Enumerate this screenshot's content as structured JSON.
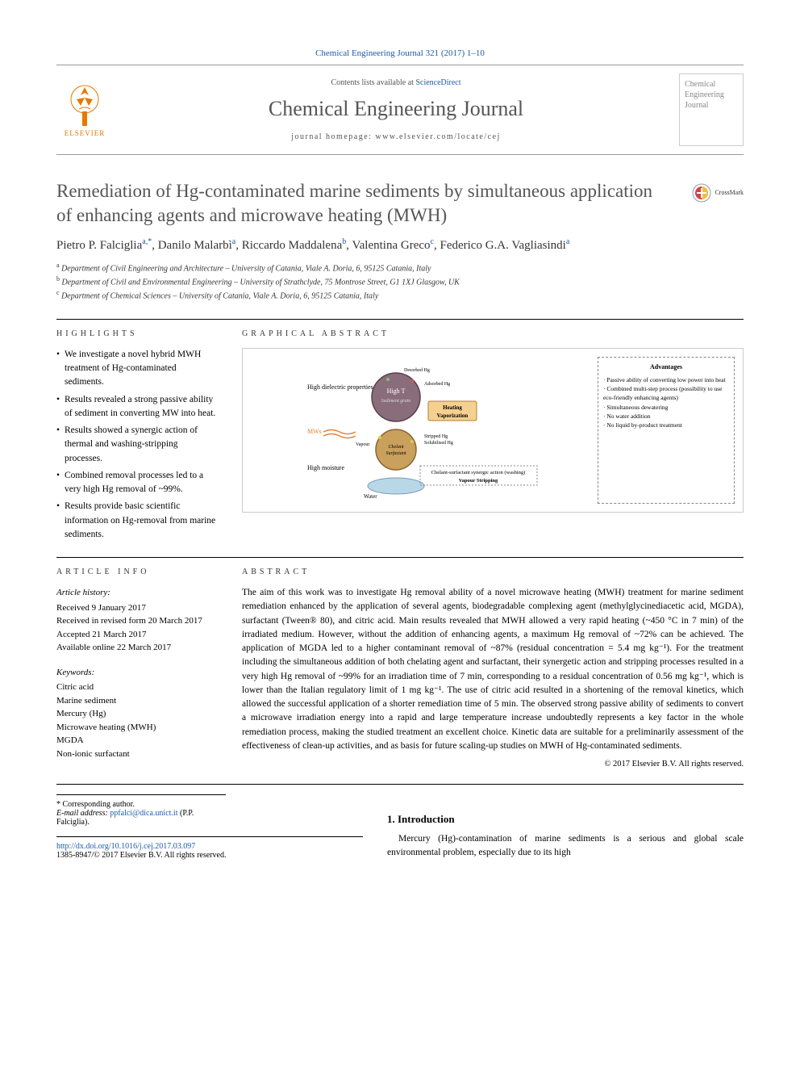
{
  "citation": "Chemical Engineering Journal 321 (2017) 1–10",
  "header": {
    "contents_prefix": "Contents lists available at ",
    "contents_link": "ScienceDirect",
    "journal_name": "Chemical Engineering Journal",
    "homepage_prefix": "journal homepage: ",
    "homepage_url": "www.elsevier.com/locate/cej",
    "publisher": "ELSEVIER",
    "cover_text": "Chemical Engineering Journal"
  },
  "crossmark": "CrossMark",
  "title": "Remediation of Hg-contaminated marine sediments by simultaneous application of enhancing agents and microwave heating (MWH)",
  "authors_html": "Pietro P. Falciglia<sup>a,*</sup>, Danilo Malarbì<sup>a</sup>, Riccardo Maddalena<sup>b</sup>, Valentina Greco<sup>c</sup>, Federico G.A. Vagliasindi<sup>a</sup>",
  "affiliations": [
    {
      "sup": "a",
      "text": "Department of Civil Engineering and Architecture – University of Catania, Viale A. Doria, 6, 95125 Catania, Italy"
    },
    {
      "sup": "b",
      "text": "Department of Civil and Environmental Engineering – University of Strathclyde, 75 Montrose Street, G1 1XJ Glasgow, UK"
    },
    {
      "sup": "c",
      "text": "Department of Chemical Sciences – University of Catania, Viale A. Doria, 6, 95125 Catania, Italy"
    }
  ],
  "labels": {
    "highlights": "HIGHLIGHTS",
    "graphical_abstract": "GRAPHICAL ABSTRACT",
    "article_info": "ARTICLE INFO",
    "abstract": "ABSTRACT"
  },
  "highlights": [
    "We investigate a novel hybrid MWH treatment of Hg-contaminated sediments.",
    "Results revealed a strong passive ability of sediment in converting MW into heat.",
    "Results showed a synergic action of thermal and washing-stripping processes.",
    "Combined removal processes led to a very high Hg removal of ~99%.",
    "Results provide basic scientific information on Hg-removal from marine sediments."
  ],
  "graphical": {
    "advantages_title": "Advantages",
    "advantages": [
      "Passive ability of converting low power into heat",
      "Combined multi-step process (possibility to use eco-friendly enhancing agents)",
      "Simultaneous dewatering",
      "No water addition",
      "No liquid by-product treatment"
    ],
    "labels": {
      "high_dielectric": "High dielectric properties",
      "mws": "MWs",
      "high_moisture": "High moisture",
      "water": "Water",
      "vapour": "Vapour",
      "high_t": "High T",
      "sediment_grain": "Sediment grain",
      "heating_vap": "Heating Vaporization",
      "desorbed": "Desorbed Hg",
      "adsorbed": "Adsorbed Hg",
      "stripped": "Stripped Hg Solubilised Hg",
      "chelant_surf": "Chelant Surfactant",
      "synergic": "Chelant-surfactant synergic action (washing)",
      "stripping": "Vapour Stripping"
    },
    "colors": {
      "sphere1_fill": "#8a6d7a",
      "sphere1_border": "#5a4050",
      "sphere2_fill": "#c9a05c",
      "sphere2_border": "#8a6530",
      "water_fill": "#b8d8e8",
      "heating_box": "#f5d090",
      "mw_arrow": "#e88030"
    }
  },
  "article_info": {
    "history_label": "Article history:",
    "history": [
      "Received 9 January 2017",
      "Received in revised form 20 March 2017",
      "Accepted 21 March 2017",
      "Available online 22 March 2017"
    ],
    "keywords_label": "Keywords:",
    "keywords": [
      "Citric acid",
      "Marine sediment",
      "Mercury (Hg)",
      "Microwave heating (MWH)",
      "MGDA",
      "Non-ionic surfactant"
    ]
  },
  "abstract": "The aim of this work was to investigate Hg removal ability of a novel microwave heating (MWH) treatment for marine sediment remediation enhanced by the application of several agents, biodegradable complexing agent (methylglycinediacetic acid, MGDA), surfactant (Tween® 80), and citric acid. Main results revealed that MWH allowed a very rapid heating (~450 °C in 7 min) of the irradiated medium. However, without the addition of enhancing agents, a maximum Hg removal of ~72% can be achieved. The application of MGDA led to a higher contaminant removal of ~87% (residual concentration = 5.4 mg kg⁻¹). For the treatment including the simultaneous addition of both chelating agent and surfactant, their synergetic action and stripping processes resulted in a very high Hg removal of ~99% for an irradiation time of 7 min, corresponding to a residual concentration of 0.56 mg kg⁻¹, which is lower than the Italian regulatory limit of 1 mg kg⁻¹. The use of citric acid resulted in a shortening of the removal kinetics, which allowed the successful application of a shorter remediation time of 5 min. The observed strong passive ability of sediments to convert a microwave irradiation energy into a rapid and large temperature increase undoubtedly represents a key factor in the whole remediation process, making the studied treatment an excellent choice. Kinetic data are suitable for a preliminarily assessment of the effectiveness of clean-up activities, and as basis for future scaling-up studies on MWH of Hg-contaminated sediments.",
  "copyright": "© 2017 Elsevier B.V. All rights reserved.",
  "intro": {
    "heading": "1. Introduction",
    "text": "Mercury (Hg)-contamination of marine sediments is a serious and global scale environmental problem, especially due to its high"
  },
  "corresponding": {
    "label": "* Corresponding author.",
    "email_label": "E-mail address:",
    "email": "ppfalci@dica.unict.it",
    "name": "(P.P. Falciglia)."
  },
  "doi": {
    "url": "http://dx.doi.org/10.1016/j.cej.2017.03.097",
    "issn_line": "1385-8947/© 2017 Elsevier B.V. All rights reserved."
  }
}
